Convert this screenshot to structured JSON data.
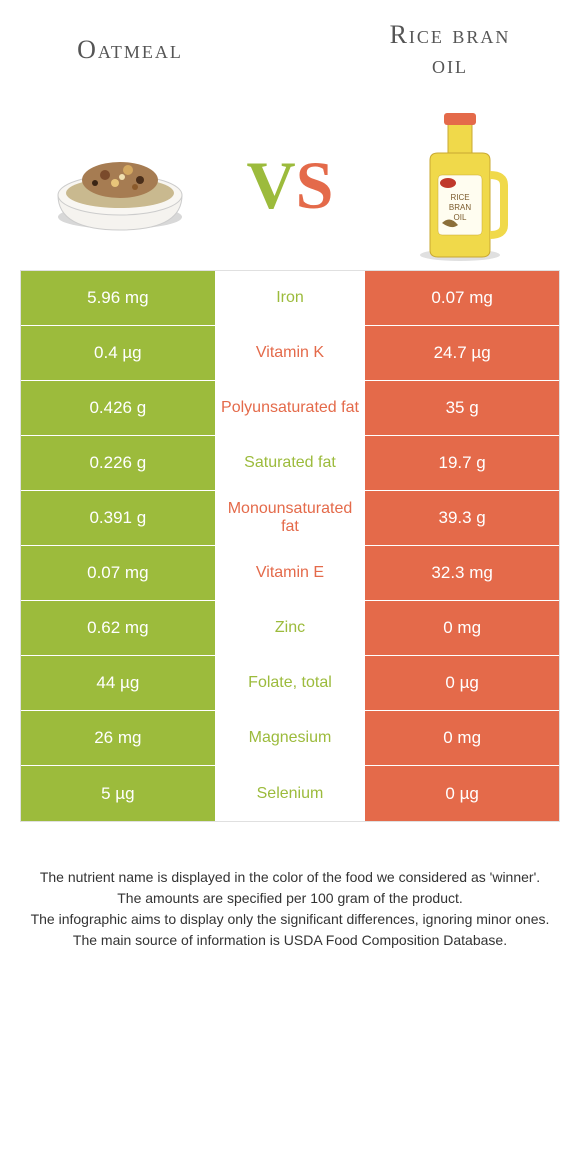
{
  "colors": {
    "left": "#9cbb3c",
    "right": "#e46a4a",
    "bg": "#ffffff",
    "text": "#333333"
  },
  "left_food": {
    "title": "Oatmeal"
  },
  "right_food": {
    "title_line1": "Rice bran",
    "title_line2": "oil"
  },
  "vs_label": {
    "v": "V",
    "s": "S"
  },
  "table_type": "comparison",
  "rows": [
    {
      "left": "5.96 mg",
      "mid": "Iron",
      "winner": "left",
      "right": "0.07 mg"
    },
    {
      "left": "0.4 µg",
      "mid": "Vitamin K",
      "winner": "right",
      "right": "24.7 µg"
    },
    {
      "left": "0.426 g",
      "mid": "Polyunsaturated fat",
      "winner": "right",
      "right": "35 g"
    },
    {
      "left": "0.226 g",
      "mid": "Saturated fat",
      "winner": "left",
      "right": "19.7 g"
    },
    {
      "left": "0.391 g",
      "mid": "Monounsaturated fat",
      "winner": "right",
      "right": "39.3 g"
    },
    {
      "left": "0.07 mg",
      "mid": "Vitamin E",
      "winner": "right",
      "right": "32.3 mg"
    },
    {
      "left": "0.62 mg",
      "mid": "Zinc",
      "winner": "left",
      "right": "0 mg"
    },
    {
      "left": "44 µg",
      "mid": "Folate, total",
      "winner": "left",
      "right": "0 µg"
    },
    {
      "left": "26 mg",
      "mid": "Magnesium",
      "winner": "left",
      "right": "0 mg"
    },
    {
      "left": "5 µg",
      "mid": "Selenium",
      "winner": "left",
      "right": "0 µg"
    }
  ],
  "footnotes": [
    "The nutrient name is displayed in the color of the food we considered as 'winner'.",
    "The amounts are specified per 100 gram of the product.",
    "The infographic aims to display only the significant differences, ignoring minor ones.",
    "The main source of information is USDA Food Composition Database."
  ]
}
